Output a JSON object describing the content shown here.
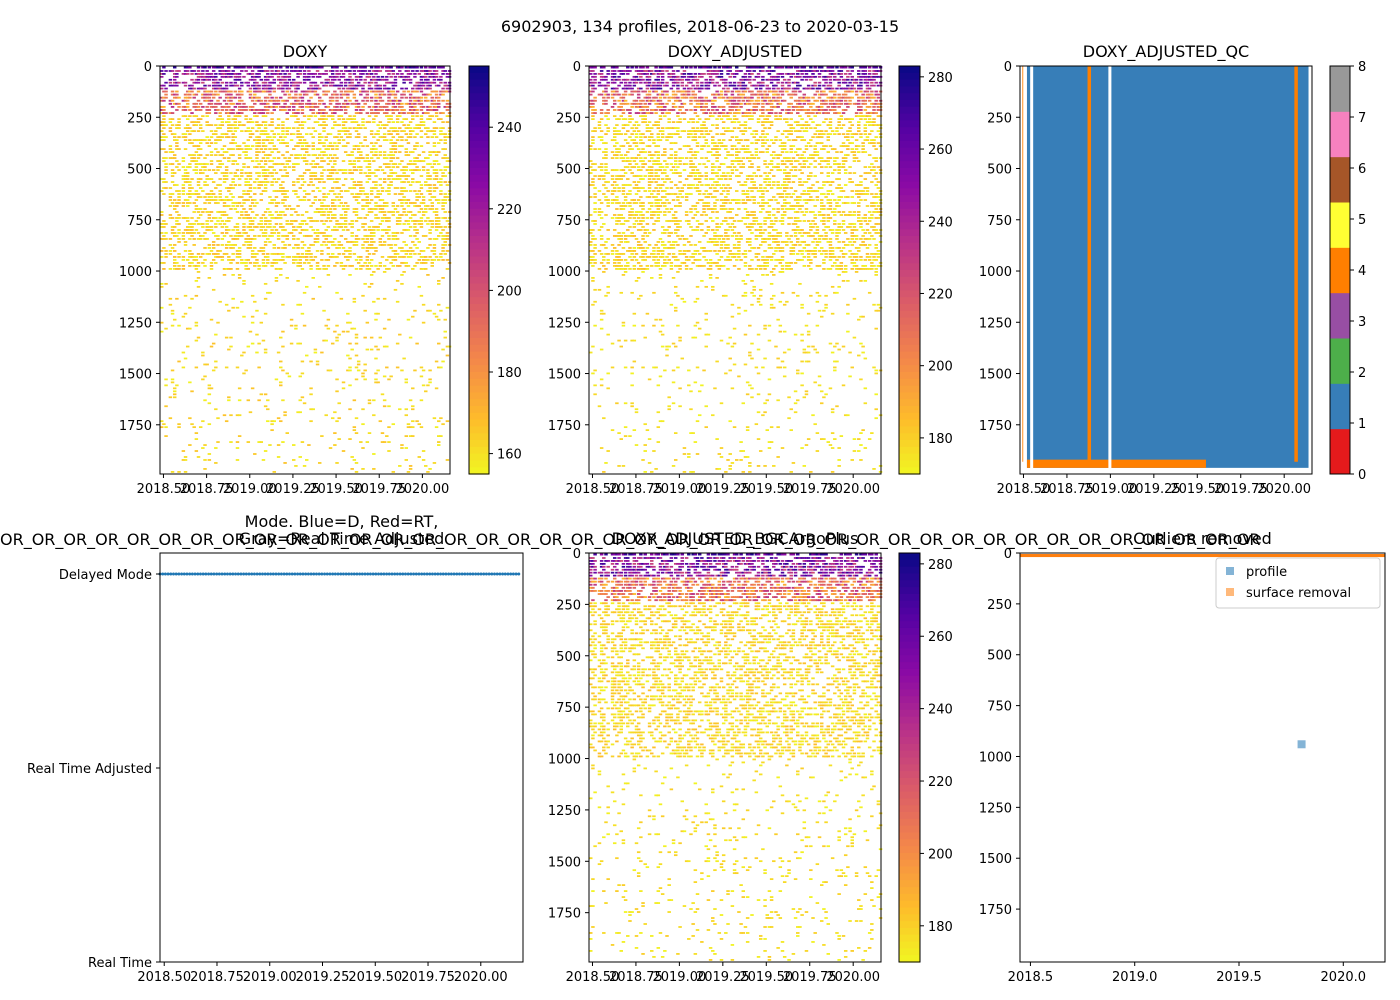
{
  "figure": {
    "suptitle": "6902903, 134 profiles, 2018-06-23 to 2020-03-15",
    "overflow_text": "OR_OR_OR_OR_OR_OR_OR_OR_OR_OR_OR_OR_OR_OR_OR_OR_OR_OR_OR_OR_OR_OR_OR_OR_OR_OR_OR_OR_OR_OR_OR_OR_OR_OR_OR_OR_OR_OR_OR_OR"
  },
  "chart_data": [
    {
      "id": "doxy",
      "type": "heatmap",
      "title": "DOXY",
      "xlim": [
        2018.48,
        2020.16
      ],
      "ylim": [
        1990,
        0
      ],
      "xticks": [
        2018.5,
        2018.75,
        2019.0,
        2019.25,
        2019.5,
        2019.75,
        2020.0
      ],
      "xticklabels": [
        "2018.50",
        "2018.75",
        "2019.00",
        "2019.25",
        "2019.50",
        "2019.75",
        "2020.00"
      ],
      "yticks": [
        0,
        250,
        500,
        750,
        1000,
        1250,
        1500,
        1750
      ],
      "yticklabels": [
        "0",
        "250",
        "500",
        "750",
        "1000",
        "1250",
        "1500",
        "1750"
      ],
      "colormap": "plasma_r",
      "colorbar": {
        "vmin": 155,
        "vmax": 255,
        "ticks": [
          160,
          180,
          200,
          220,
          240
        ],
        "ticklabels": [
          "160",
          "180",
          "200",
          "220",
          "240"
        ]
      },
      "profile_gaps": [
        2018.52,
        2018.6
      ],
      "bands": [
        {
          "ymin": 0,
          "ymax": 20,
          "density": 0.6,
          "vmin": 228,
          "vmax": 252
        },
        {
          "ymin": 20,
          "ymax": 120,
          "density": 0.55,
          "vmin": 205,
          "vmax": 245
        },
        {
          "ymin": 120,
          "ymax": 240,
          "density": 0.55,
          "vmin": 170,
          "vmax": 215
        },
        {
          "ymin": 240,
          "ymax": 1000,
          "density": 0.35,
          "vmin": 156,
          "vmax": 170
        },
        {
          "ymin": 1000,
          "ymax": 1990,
          "density": 0.05,
          "vmin": 156,
          "vmax": 168
        }
      ]
    },
    {
      "id": "doxy_adj",
      "type": "heatmap",
      "title": "DOXY_ADJUSTED",
      "xlim": [
        2018.48,
        2020.16
      ],
      "ylim": [
        1990,
        0
      ],
      "xticks": [
        2018.5,
        2018.75,
        2019.0,
        2019.25,
        2019.5,
        2019.75,
        2020.0
      ],
      "xticklabels": [
        "2018.50",
        "2018.75",
        "2019.00",
        "2019.25",
        "2019.50",
        "2019.75",
        "2020.00"
      ],
      "yticks": [
        0,
        250,
        500,
        750,
        1000,
        1250,
        1500,
        1750
      ],
      "yticklabels": [
        "0",
        "250",
        "500",
        "750",
        "1000",
        "1250",
        "1500",
        "1750"
      ],
      "colormap": "plasma_r",
      "colorbar": {
        "vmin": 170,
        "vmax": 283,
        "ticks": [
          180,
          200,
          220,
          240,
          260,
          280
        ],
        "ticklabels": [
          "180",
          "200",
          "220",
          "240",
          "260",
          "280"
        ]
      },
      "profile_gaps": [
        2018.52,
        2018.6
      ],
      "bands": [
        {
          "ymin": 0,
          "ymax": 20,
          "density": 0.6,
          "vmin": 250,
          "vmax": 280
        },
        {
          "ymin": 20,
          "ymax": 120,
          "density": 0.55,
          "vmin": 225,
          "vmax": 275
        },
        {
          "ymin": 120,
          "ymax": 240,
          "density": 0.55,
          "vmin": 185,
          "vmax": 235
        },
        {
          "ymin": 240,
          "ymax": 1000,
          "density": 0.35,
          "vmin": 171,
          "vmax": 186
        },
        {
          "ymin": 1000,
          "ymax": 1990,
          "density": 0.05,
          "vmin": 171,
          "vmax": 182
        }
      ]
    },
    {
      "id": "doxy_adj_qc",
      "type": "heatmap",
      "title": "DOXY_ADJUSTED_QC",
      "xlim": [
        2018.48,
        2020.16
      ],
      "ylim": [
        1990,
        0
      ],
      "xticks": [
        2018.5,
        2018.75,
        2019.0,
        2019.25,
        2019.5,
        2019.75,
        2020.0
      ],
      "xticklabels": [
        "2018.50",
        "2018.75",
        "2019.00",
        "2019.25",
        "2019.50",
        "2019.75",
        "2020.00"
      ],
      "yticks": [
        0,
        250,
        500,
        750,
        1000,
        1250,
        1500,
        1750
      ],
      "yticklabels": [
        "0",
        "250",
        "500",
        "750",
        "1000",
        "1250",
        "1500",
        "1750"
      ],
      "colorbar": {
        "vmin": 0,
        "vmax": 8,
        "ticks": [
          0,
          1,
          2,
          3,
          4,
          5,
          6,
          7,
          8
        ],
        "ticklabels": [
          "0",
          "1",
          "2",
          "3",
          "4",
          "5",
          "6",
          "7",
          "8"
        ],
        "colors": [
          "#e41a1c",
          "#377eb8",
          "#4daf4a",
          "#984ea3",
          "#ff7f00",
          "#ffff33",
          "#a65628",
          "#f781bf",
          "#999999"
        ]
      },
      "qc1_region": {
        "xmin": 2018.52,
        "xmax": 2020.14,
        "ymin": 0,
        "ymax": 1960
      },
      "qc4_columns": [
        2018.505,
        2018.88,
        2020.07
      ],
      "qc4_bottom_band": {
        "xmin": 2018.52,
        "xmax": 2019.55,
        "ymin": 1920,
        "ymax": 1960
      },
      "gaps": [
        2018.51,
        2018.55,
        2019.0
      ]
    },
    {
      "id": "mode",
      "type": "scatter",
      "title": "Mode. Blue=D, Red=RT,\nGray=Real Time Adjusted",
      "xlim": [
        2018.48,
        2020.2
      ],
      "xticks": [
        2018.5,
        2018.75,
        2019.0,
        2019.25,
        2019.5,
        2019.75,
        2020.0
      ],
      "xticklabels": [
        "2018.50",
        "2018.75",
        "2019.00",
        "2019.25",
        "2019.50",
        "2019.75",
        "2020.00"
      ],
      "ycategories": [
        "Delayed Mode",
        "Real Time Adjusted",
        "Real Time"
      ],
      "series": [
        {
          "name": "Delayed Mode",
          "color": "#1f77b4",
          "xmin": 2018.48,
          "xmax": 2020.18,
          "count": 134
        }
      ]
    },
    {
      "id": "bgcargoplus",
      "type": "heatmap",
      "title": "DOXY_ADJUSTED_BGCArgoPlus",
      "xlim": [
        2018.48,
        2020.16
      ],
      "ylim": [
        1990,
        0
      ],
      "xticks": [
        2018.5,
        2018.75,
        2019.0,
        2019.25,
        2019.5,
        2019.75,
        2020.0
      ],
      "xticklabels": [
        "2018.50",
        "2018.75",
        "2019.00",
        "2019.25",
        "2019.50",
        "2019.75",
        "2020.00"
      ],
      "yticks": [
        0,
        250,
        500,
        750,
        1000,
        1250,
        1500,
        1750
      ],
      "yticklabels": [
        "0",
        "250",
        "500",
        "750",
        "1000",
        "1250",
        "1500",
        "1750"
      ],
      "colormap": "plasma_r",
      "colorbar": {
        "vmin": 170,
        "vmax": 283,
        "ticks": [
          180,
          200,
          220,
          240,
          260,
          280
        ],
        "ticklabels": [
          "180",
          "200",
          "220",
          "240",
          "260",
          "280"
        ]
      },
      "profile_gaps": [
        2018.52,
        2018.6
      ],
      "bands": [
        {
          "ymin": 0,
          "ymax": 20,
          "density": 0.6,
          "vmin": 250,
          "vmax": 280
        },
        {
          "ymin": 20,
          "ymax": 120,
          "density": 0.55,
          "vmin": 225,
          "vmax": 275
        },
        {
          "ymin": 120,
          "ymax": 240,
          "density": 0.55,
          "vmin": 185,
          "vmax": 235
        },
        {
          "ymin": 240,
          "ymax": 1000,
          "density": 0.35,
          "vmin": 171,
          "vmax": 186
        },
        {
          "ymin": 1000,
          "ymax": 1990,
          "density": 0.05,
          "vmin": 171,
          "vmax": 182
        }
      ]
    },
    {
      "id": "outliers",
      "type": "scatter",
      "title": "Outliers removed",
      "xlim": [
        2018.45,
        2020.2
      ],
      "ylim": [
        2010,
        0
      ],
      "xticks": [
        2018.5,
        2019.0,
        2019.5,
        2020.0
      ],
      "xticklabels": [
        "2018.5",
        "2019.0",
        "2019.5",
        "2020.0"
      ],
      "yticks": [
        0,
        250,
        500,
        750,
        1000,
        1250,
        1500,
        1750
      ],
      "yticklabels": [
        "0",
        "250",
        "500",
        "750",
        "1000",
        "1250",
        "1500",
        "1750"
      ],
      "legend_position": "upper-right",
      "series": [
        {
          "name": "profile",
          "color": "#1f77b4",
          "points": [
            [
              2019.8,
              940
            ]
          ]
        },
        {
          "name": "surface removal",
          "color": "#ff7f0e",
          "xmin": 2018.45,
          "xmax": 2020.2,
          "ymin": 5,
          "ymax": 20
        }
      ]
    }
  ]
}
